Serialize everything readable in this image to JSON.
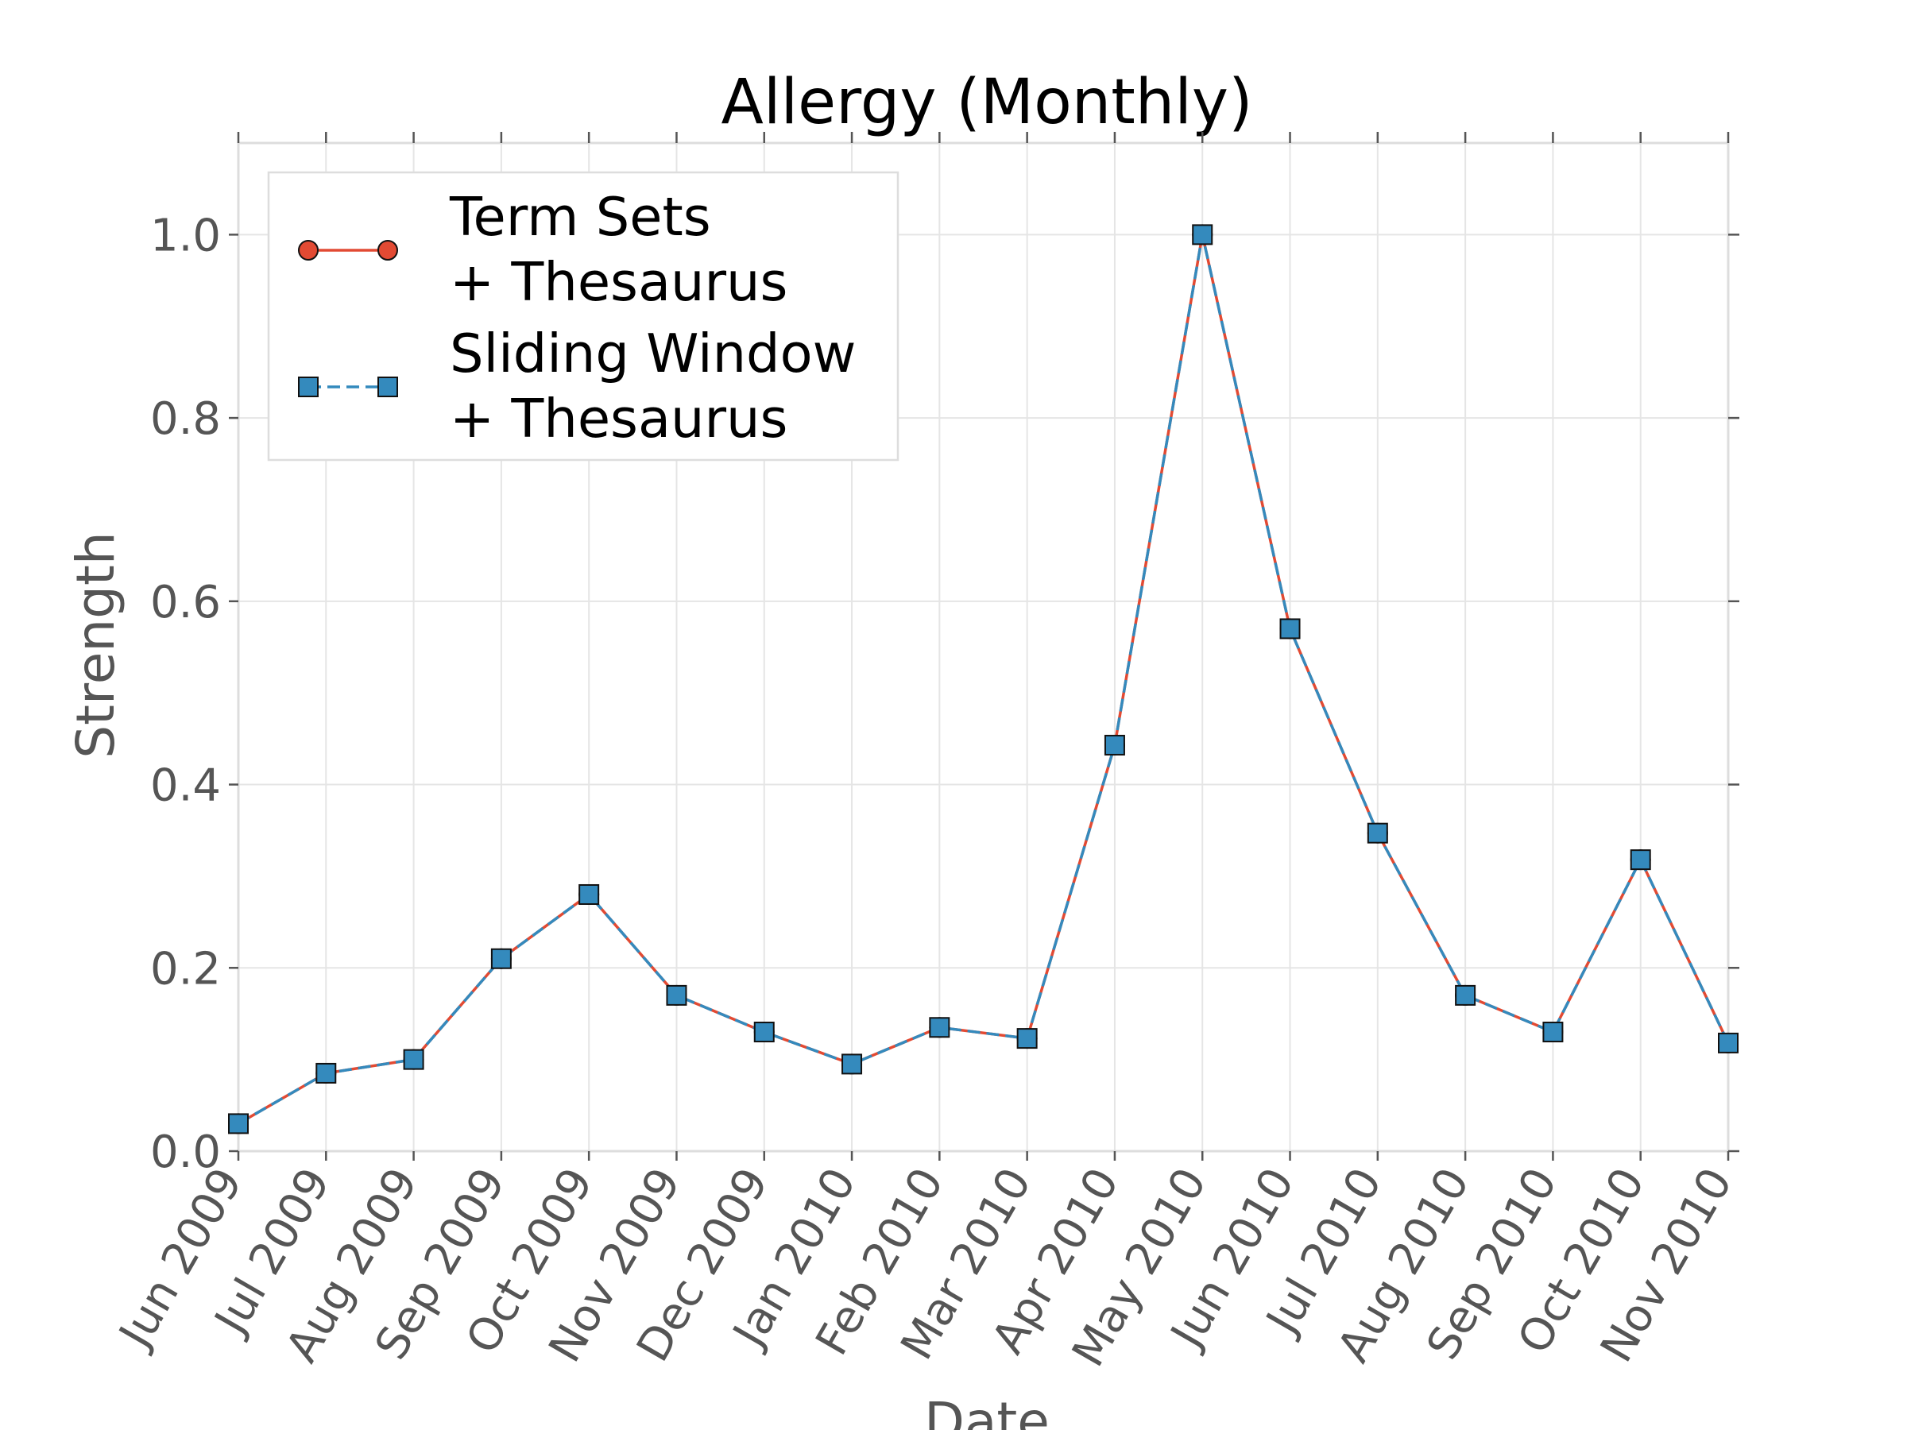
{
  "chart_data": {
    "type": "line",
    "title": "Allergy (Monthly)",
    "xlabel": "Date",
    "ylabel": "Strength",
    "x": [
      "Jun 2009",
      "Jul 2009",
      "Aug 2009",
      "Sep 2009",
      "Oct 2009",
      "Nov 2009",
      "Dec 2009",
      "Jan 2010",
      "Feb 2010",
      "Mar 2010",
      "Apr 2010",
      "May 2010",
      "Jun 2010",
      "Jul 2010",
      "Aug 2010",
      "Sep 2010",
      "Oct 2010",
      "Nov 2010"
    ],
    "series": [
      {
        "name": "Term Sets\n+ Thesaurus",
        "color": "#e24a33",
        "marker": "circle",
        "linestyle": "solid",
        "values": [
          0.03,
          0.085,
          0.1,
          0.21,
          0.28,
          0.17,
          0.13,
          0.095,
          0.135,
          0.123,
          0.443,
          1.0,
          0.57,
          0.347,
          0.17,
          0.13,
          0.318,
          0.118
        ]
      },
      {
        "name": "Sliding Window\n+ Thesaurus",
        "color": "#348abd",
        "marker": "square",
        "linestyle": "dashed",
        "values": [
          0.03,
          0.085,
          0.1,
          0.21,
          0.28,
          0.17,
          0.13,
          0.095,
          0.135,
          0.123,
          0.443,
          1.0,
          0.57,
          0.347,
          0.17,
          0.13,
          0.318,
          0.118
        ]
      }
    ],
    "yticks": [
      "0.0",
      "0.2",
      "0.4",
      "0.6",
      "0.8",
      "1.0"
    ],
    "ylim": [
      0,
      1.1
    ],
    "grid": true,
    "legend_position": "top-left"
  }
}
